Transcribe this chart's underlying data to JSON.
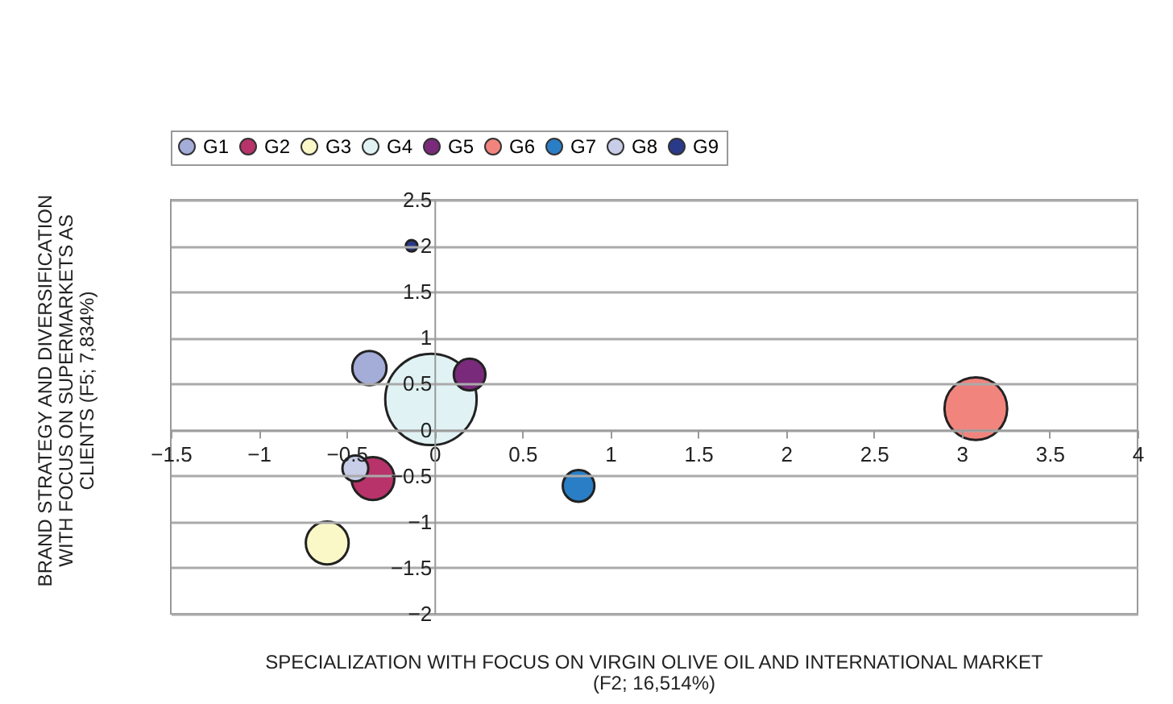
{
  "chart_data": {
    "type": "bubble",
    "xlabel": "SPECIALIZATION WITH FOCUS ON VIRGIN OLIVE OIL AND INTERNATIONAL MARKET (F2; 16,514%)",
    "ylabel": "BRAND STRATEGY AND DIVERSIFICATION WITH FOCUS ON SUPERMARKETS AS CLIENTS (F5; 7,834%)",
    "xlim": [
      -1.5,
      4
    ],
    "xticks": [
      -1.5,
      -1,
      -0.5,
      0,
      0.5,
      1,
      1.5,
      2,
      2.5,
      3,
      3.5,
      4
    ],
    "ylim": [
      -2,
      2.5
    ],
    "yticks": [
      -2,
      -1.5,
      -1,
      -0.5,
      0,
      0.5,
      1,
      1.5,
      2,
      2.5
    ],
    "grid": "y",
    "legend": "top",
    "series": [
      {
        "name": "G1",
        "color": "#a4acd8",
        "x": [
          -0.37
        ],
        "values": [
          0.67
        ],
        "sizes": [
          0.14
        ]
      },
      {
        "name": "G2",
        "color": "#b8336a",
        "x": [
          -0.35
        ],
        "values": [
          -0.53
        ],
        "sizes": [
          0.22
        ]
      },
      {
        "name": "G3",
        "color": "#fbf8c8",
        "x": [
          -0.61
        ],
        "values": [
          -1.23
        ],
        "sizes": [
          0.22
        ]
      },
      {
        "name": "G4",
        "color": "#e0f2f4",
        "x": [
          -0.02
        ],
        "values": [
          0.33
        ],
        "sizes": [
          1
        ]
      },
      {
        "name": "G5",
        "color": "#7a2a7a",
        "x": [
          0.2
        ],
        "values": [
          0.6
        ],
        "sizes": [
          0.12
        ]
      },
      {
        "name": "G6",
        "color": "#f2847e",
        "x": [
          3.08
        ],
        "values": [
          0.23
        ],
        "sizes": [
          0.47
        ]
      },
      {
        "name": "G7",
        "color": "#2a7ec6",
        "x": [
          0.82
        ],
        "values": [
          -0.61
        ],
        "sizes": [
          0.12
        ]
      },
      {
        "name": "G8",
        "color": "#c8cde8",
        "x": [
          -0.45
        ],
        "values": [
          -0.42
        ],
        "sizes": [
          0.08
        ]
      },
      {
        "name": "G9",
        "color": "#2a3a8a",
        "x": [
          -0.13
        ],
        "values": [
          2.0
        ],
        "sizes": [
          0.016
        ]
      }
    ]
  }
}
